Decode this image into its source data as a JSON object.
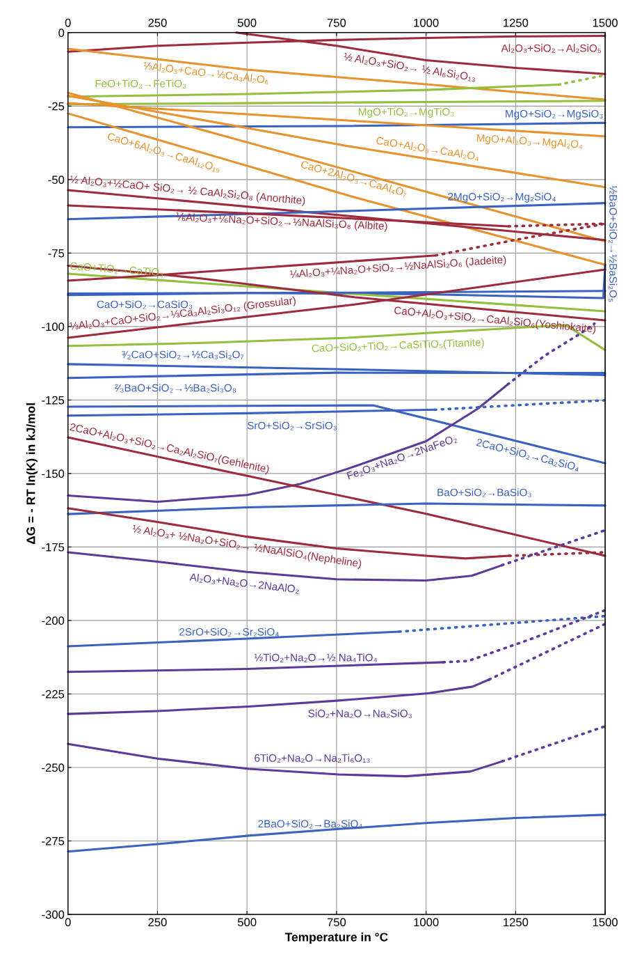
{
  "chart_data": {
    "type": "line",
    "xlabel": "Temperature in °C",
    "ylabel": "ΔG = - RT ln(K) in kJ/mol",
    "xlim": [
      0,
      1500
    ],
    "xticks": [
      0,
      250,
      500,
      750,
      1000,
      1250,
      1500
    ],
    "x2lim": [
      0,
      1500
    ],
    "x2ticks": [
      0,
      250,
      500,
      750,
      1000,
      1250,
      1500
    ],
    "ylim": [
      -300,
      0
    ],
    "yticks": [
      0,
      -25,
      -50,
      -75,
      -100,
      -125,
      -150,
      -175,
      -200,
      -225,
      -250,
      -275,
      -300
    ],
    "grid": true,
    "series": [
      {
        "name": "Al₂O₃+SiO₂→Al₂SiO₅",
        "color": "#9e2a3c",
        "x": [
          0,
          250,
          500,
          750,
          1000,
          1250,
          1500
        ],
        "values": [
          -6.5,
          -4.5,
          -3.4,
          -2.5,
          -1.8,
          -1.3,
          -1.1
        ]
      },
      {
        "name": "½ Al₂O₃+SiO₂→ ½ Al₆Si₂O₁₃",
        "color": "#9e2a3c",
        "x": [
          470,
          750,
          1000,
          1250,
          1500
        ],
        "values": [
          0,
          -4.5,
          -9.4,
          -12,
          -14.1
        ]
      },
      {
        "name": "⅓Al₂O₃+CaO→⅓Ca₃Al₂O₆",
        "color": "#e8922e",
        "x": [
          0,
          500,
          1000,
          1500
        ],
        "values": [
          -5.5,
          -12.6,
          -17.6,
          -22.8
        ]
      },
      {
        "name": "FeO+TiO₂→FeTiO₃",
        "color": "#92bf3c",
        "x": [
          0,
          500,
          1000,
          1370
        ],
        "values": [
          -21.8,
          -20.9,
          -19.5,
          -17.7
        ]
      },
      {
        "name": "MgO+TiO₂→MgTiO₃",
        "color": "#92bf3c",
        "x": [
          0,
          500,
          1000,
          1500
        ],
        "values": [
          -24.4,
          -24,
          -23.6,
          -23.2
        ]
      },
      {
        "name": "MgO+SiO₂→MgSiO₃",
        "color": "#3a62c0",
        "x": [
          0,
          750,
          1500
        ],
        "values": [
          -32.2,
          -31.8,
          -30.7
        ]
      },
      {
        "name": "MgO+Al₂O₃→MgAl₂O₄",
        "color": "#e8922e",
        "x": [
          0,
          781,
          1500
        ],
        "values": [
          -24,
          -29.9,
          -35.3
        ]
      },
      {
        "name": "CaO+Al₂O₃→CaAl₂O₄",
        "color": "#e8922e",
        "x": [
          0,
          781,
          1500
        ],
        "values": [
          -21.5,
          -38.6,
          -52.6
        ]
      },
      {
        "name": "CaO+6Al₂O₃→CaAl₁₂O₁₉",
        "color": "#e8922e",
        "x": [
          0,
          800,
          1500
        ],
        "values": [
          -27.5,
          -56,
          -79
        ]
      },
      {
        "name": "CaO+2Al₂O₃→CaAl₄O₇",
        "color": "#e8922e",
        "x": [
          0,
          800,
          1500
        ],
        "values": [
          -20.5,
          -47.4,
          -71
        ]
      },
      {
        "name": "½ Al₂O₃+½CaO+ SiO₂→ ½ CaAl₂Si₂O₈ (Anorthite)",
        "color": "#9e2a3c",
        "x": [
          0,
          750,
          1500
        ],
        "values": [
          -53.6,
          -62,
          -70.6
        ]
      },
      {
        "name": "2MgO+SiO₂→Mg₂SiO₄",
        "color": "#3a62c0",
        "x": [
          0,
          750,
          1500
        ],
        "values": [
          -63.5,
          -60.8,
          -58
        ]
      },
      {
        "name": "½BaO+SiO₂→½BaSi₂O₅",
        "color": "#3a62c0",
        "x": [
          0,
          500,
          1000,
          1495,
          1500
        ],
        "values": [
          -89.3,
          -88.6,
          -89,
          -90.3,
          -79
        ]
      },
      {
        "name": "⅙Al₂O₃+⅙Na₂O+SiO₂→⅓NaAlSi₃O₈ (Albite)",
        "color": "#9e2a3c",
        "x": [
          0,
          500,
          1000,
          1230
        ],
        "values": [
          -58.8,
          -61.5,
          -64.5,
          -65.9
        ]
      },
      {
        "name": "CaO+TiO₂→CaTiO₃",
        "color": "#92bf3c",
        "x": [
          0,
          750,
          1500
        ],
        "values": [
          -82,
          -88.5,
          -94.8
        ]
      },
      {
        "name": "¼Al₂O₃+¼Na₂O+SiO₂→½NaAlSi₂O₆ (Jadeite)",
        "color": "#9e2a3c",
        "x": [
          0,
          250,
          500,
          750,
          1027
        ],
        "values": [
          -84.4,
          -82.5,
          -80.3,
          -78.2,
          -75.8
        ]
      },
      {
        "name": "CaO+SiO₂→CaSiO₃",
        "color": "#3a62c0",
        "x": [
          0,
          750,
          1500
        ],
        "values": [
          -88.8,
          -88.5,
          -87.9
        ]
      },
      {
        "name": "⅓Al₂O₃+CaO+SiO₂→⅓Ca₃Al₂Si₃O₁₂ (Grossular)",
        "color": "#9e2a3c",
        "x": [
          0,
          800,
          1500
        ],
        "values": [
          -103.8,
          -92.5,
          -80.6
        ]
      },
      {
        "name": "CaO+Al₂O₃+SiO₂→CaAl₂SiO₆(Yoshiokaite)",
        "color": "#9e2a3c",
        "x": [
          0,
          370,
          800,
          1500
        ],
        "values": [
          -79.3,
          -83.6,
          -90,
          -97.9
        ]
      },
      {
        "name": "³⁄₂CaO+SiO₂→½Ca₃Si₂O₇",
        "color": "#3a62c0",
        "x": [
          0,
          750,
          1500
        ],
        "values": [
          -112.8,
          -114.5,
          -116.5
        ]
      },
      {
        "name": "CaO+SiO₂+TiO₂→CaSiTiO₅(Titanite)",
        "color": "#92bf3c",
        "x": [
          0,
          400,
          781,
          1100,
          1390,
          1500
        ],
        "values": [
          -106.6,
          -105.5,
          -103.8,
          -101.5,
          -99.5,
          -108
        ]
      },
      {
        "name": "²⁄₃BaO+SiO₂→⅓Ba₂Si₃O₈",
        "color": "#3a62c0",
        "x": [
          0,
          750,
          1500
        ],
        "values": [
          -117.5,
          -115.7,
          -115.8
        ]
      },
      {
        "name": "2CaO+SiO₂→Ca₂SiO₄",
        "color": "#3a62c0",
        "x": [
          0,
          500,
          852,
          1500
        ],
        "values": [
          -127.3,
          -127,
          -126.8,
          -146.5
        ]
      },
      {
        "name": "SrO+SiO₂→SrSiO₃",
        "color": "#3a62c0",
        "x": [
          0,
          500,
          1024
        ],
        "values": [
          -130.3,
          -129.5,
          -128.3
        ]
      },
      {
        "name": "Fe₂O₃+Na₂O→2NaFeO₂",
        "color": "#5b3a9a",
        "x": [
          0,
          250,
          500,
          650,
          781,
          1000,
          1144,
          1228
        ],
        "values": [
          -157.5,
          -159.6,
          -157.3,
          -153.5,
          -148.4,
          -139,
          -128,
          -119.7
        ]
      },
      {
        "name": "2CaO+Al₂O₃+SiO₂→Ca₂Al₂SiO₇(Gehlenite)",
        "color": "#9e2a3c",
        "x": [
          0,
          450,
          1000,
          1500
        ],
        "values": [
          -137.7,
          -149.5,
          -163.7,
          -178
        ]
      },
      {
        "name": "BaO+SiO₂→BaSiO₃",
        "color": "#3a62c0",
        "x": [
          0,
          500,
          1000,
          1500
        ],
        "values": [
          -163.8,
          -161.5,
          -160.2,
          -160.9
        ]
      },
      {
        "name": "½ Al₂O₃+ ½Na₂O+SiO₂→ ½NaAlSiO₄(Nepheline)",
        "color": "#9e2a3c",
        "x": [
          0,
          250,
          500,
          750,
          1000,
          1110,
          1232
        ],
        "values": [
          -161.8,
          -166.5,
          -171.5,
          -175.5,
          -178,
          -178.9,
          -178
        ]
      },
      {
        "name": "Al₂O₃+Na₂O→2NaAlO₂",
        "color": "#5b3a9a",
        "x": [
          0,
          250,
          500,
          750,
          1000,
          1127,
          1212
        ],
        "values": [
          -176.8,
          -180,
          -183.5,
          -186,
          -186.4,
          -184.8,
          -181.2
        ]
      },
      {
        "name": "2SrO+SiO₂→Sr₂SiO₄",
        "color": "#3a62c0",
        "x": [
          0,
          500,
          925
        ],
        "values": [
          -208.8,
          -206.2,
          -203.8
        ]
      },
      {
        "name": "½TiO₂+Na₂O→½ Na₄TiO₄",
        "color": "#5b3a9a",
        "x": [
          0,
          500,
          1048
        ],
        "values": [
          -217.5,
          -216.5,
          -214.2
        ]
      },
      {
        "name": "SiO₂+Na₂O→Na₂SiO₃",
        "color": "#5b3a9a",
        "x": [
          0,
          250,
          505,
          750,
          1006,
          1130,
          1176
        ],
        "values": [
          -231.8,
          -230.8,
          -229.3,
          -227.3,
          -224.8,
          -222.5,
          -220.1
        ]
      },
      {
        "name": "6TiO₂+Na₂O→Na₂Ti₆O₁₃",
        "color": "#5b3a9a",
        "x": [
          0,
          250,
          505,
          755,
          943,
          1123,
          1213
        ],
        "values": [
          -242,
          -247,
          -250.5,
          -252.4,
          -253,
          -251.4,
          -247.9
        ]
      },
      {
        "name": "2BaO+SiO₂→Ba₂SiO₄",
        "color": "#3a62c0",
        "x": [
          0,
          250,
          505,
          750,
          1000,
          1250,
          1500
        ],
        "values": [
          -278.6,
          -276.1,
          -273.2,
          -271,
          -268.9,
          -267.2,
          -266.1
        ]
      },
      {
        "color": "#92bf3c",
        "line_style": "dotted",
        "x": [
          1370,
          1500
        ],
        "values": [
          -17.7,
          -14.5
        ]
      },
      {
        "color": "#9e2a3c",
        "line_style": "dotted",
        "x": [
          1230,
          1500
        ],
        "values": [
          -65.9,
          -65
        ]
      },
      {
        "color": "#9e2a3c",
        "line_style": "dotted",
        "x": [
          1027,
          1250,
          1500
        ],
        "values": [
          -75.8,
          -70.5,
          -65
        ]
      },
      {
        "color": "#3a62c0",
        "line_style": "dotted",
        "x": [
          1024,
          1500
        ],
        "values": [
          -128.3,
          -125.1
        ]
      },
      {
        "color": "#5b3a9a",
        "line_style": "dotted",
        "x": [
          1228,
          1330,
          1428,
          1470
        ],
        "values": [
          -119.7,
          -110,
          -102.6,
          -99
        ]
      },
      {
        "color": "#9e2a3c",
        "line_style": "dotted",
        "x": [
          1232,
          1500
        ],
        "values": [
          -178,
          -176.8
        ]
      },
      {
        "color": "#5b3a9a",
        "line_style": "dotted",
        "x": [
          1212,
          1500
        ],
        "values": [
          -181.2,
          -169.3
        ]
      },
      {
        "color": "#3a62c0",
        "line_style": "dotted",
        "x": [
          925,
          1500
        ],
        "values": [
          -203.8,
          -198.5
        ]
      },
      {
        "color": "#5b3a9a",
        "line_style": "dotted",
        "x": [
          1048,
          1117,
          1300,
          1500
        ],
        "values": [
          -214.2,
          -213.8,
          -206,
          -196.5
        ]
      },
      {
        "color": "#5b3a9a",
        "line_style": "dotted",
        "x": [
          1176,
          1500
        ],
        "values": [
          -220.1,
          -201.2
        ]
      },
      {
        "color": "#5b3a9a",
        "line_style": "dotted",
        "x": [
          1213,
          1500
        ],
        "values": [
          -247.9,
          -236
        ]
      }
    ]
  }
}
